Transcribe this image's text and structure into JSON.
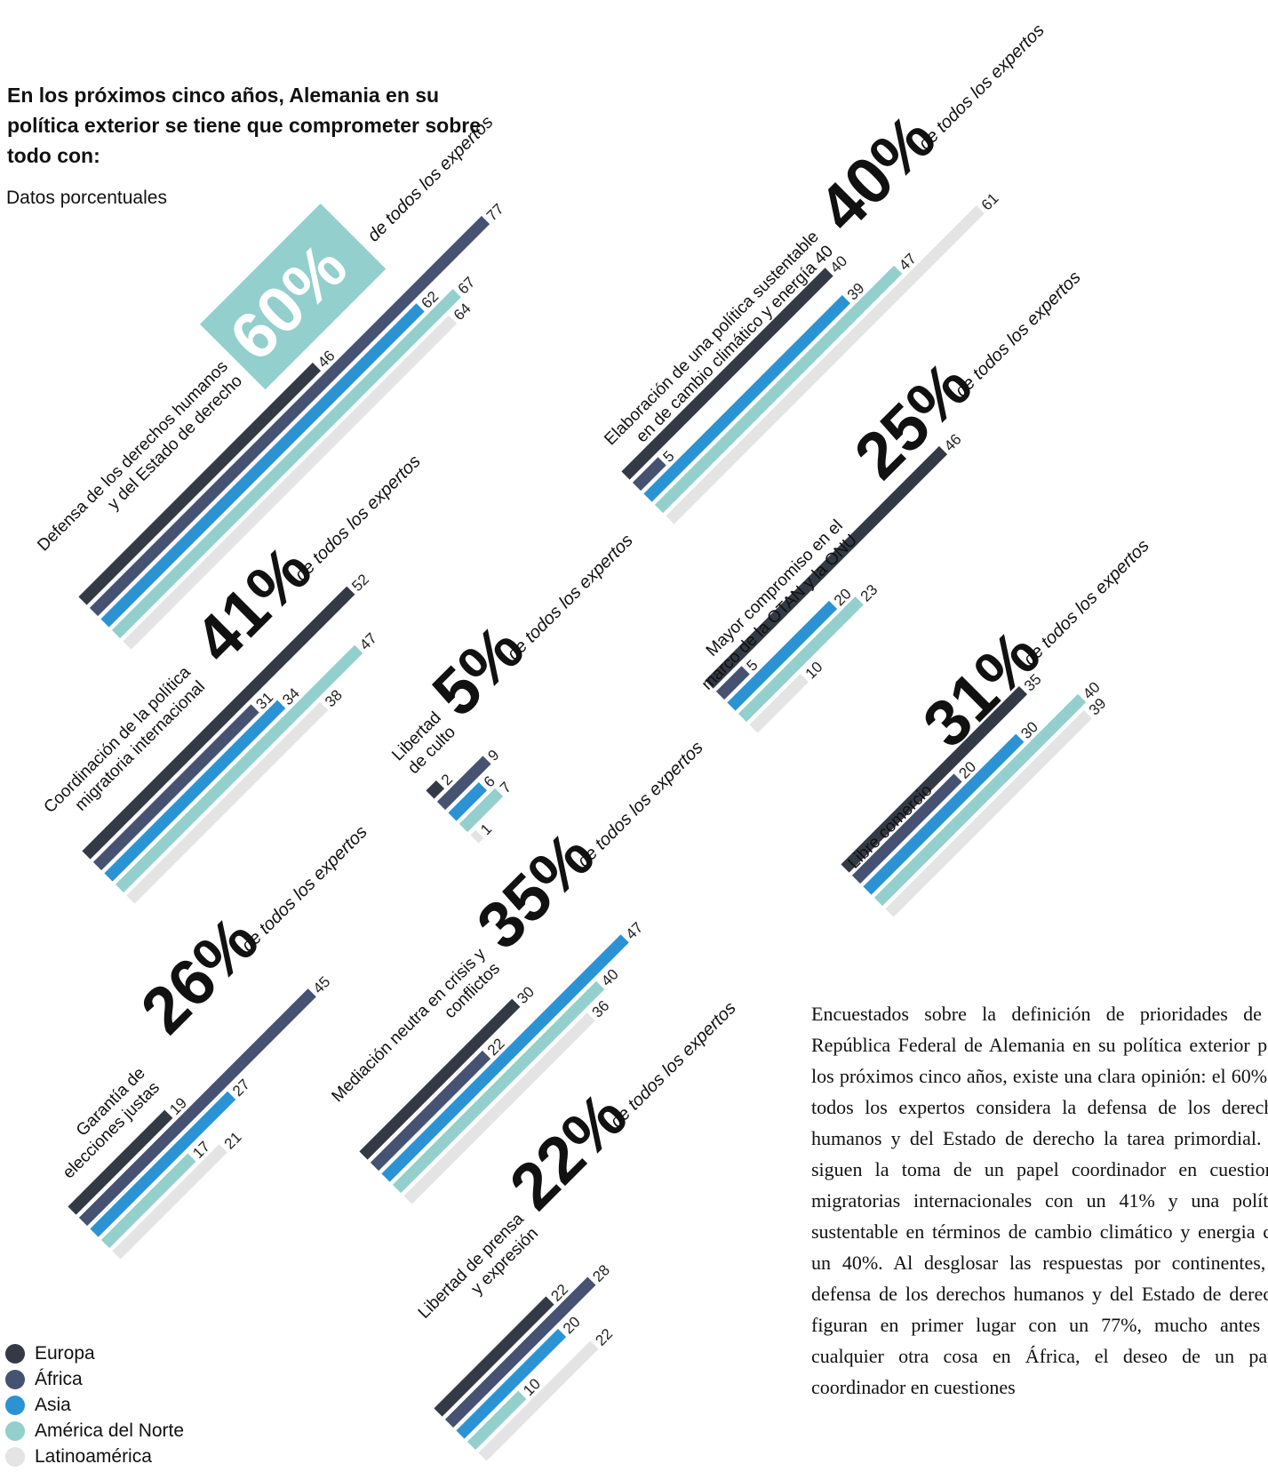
{
  "title": "En los próximos cinco años, Alemania en su política exterior se tiene que comprometer sobre todo con:",
  "subtitle": "Datos porcentuales",
  "summary": "Encuestados sobre la definición de prioridades de la República Federal de Alemania en su política exterior para los próximos cinco años, existe una clara opinión: el 60% de todos los expertos considera la defensa de los derechos humanos y del Estado de derecho la tarea primordial. Le siguen la toma de un papel coordinador en cuestiones migratorias internacionales con un 41% y una política sustentable en términos de cambio climático y energia con un 40%. Al desglosar las respuestas por continentes, la defensa de los derechos humanos y del Estado de derecho figuran en primer lugar con un 77%, mucho antes de cualquier otra cosa en África, el deseo de un papel coordinador en cuestiones",
  "colors": {
    "Europa": "#333a45",
    "África": "#465272",
    "Asia": "#2b93d3",
    "América del Norte": "#93cfcd",
    "Latinoamérica": "#e4e4e4",
    "highlight": "#93cfcd"
  },
  "chart_data": {
    "type": "bar",
    "series": [
      "Europa",
      "África",
      "Asia",
      "América del Norte",
      "Latinoamérica"
    ],
    "suffix": "de todos los expertos",
    "groups": [
      {
        "label": [
          "Defensa de los derechos humanos",
          "y del Estado de derecho"
        ],
        "percent": "60%",
        "values": [
          46,
          77,
          62,
          67,
          64
        ],
        "highlight": true
      },
      {
        "label": [
          "Coordinación de la política",
          "migratoria internacional"
        ],
        "percent": "41%",
        "values": [
          52,
          31,
          34,
          47,
          38
        ]
      },
      {
        "label": [
          "Libertad",
          "de culto"
        ],
        "percent": "5%",
        "values": [
          2,
          9,
          6,
          7,
          1
        ]
      },
      {
        "label": [
          "Garantía de",
          "elecciones justas"
        ],
        "percent": "26%",
        "values": [
          19,
          45,
          27,
          17,
          21
        ]
      },
      {
        "label": [
          "Mediación neutra en crisis y",
          "conflictos"
        ],
        "percent": "35%",
        "values": [
          30,
          22,
          47,
          40,
          36
        ]
      },
      {
        "label": [
          "Libertad de prensa",
          "y expresión"
        ],
        "percent": "22%",
        "values": [
          22,
          28,
          20,
          10,
          22
        ]
      },
      {
        "label": [
          "Elaboración de una política sustentable",
          "en de cambio climático y energía 40"
        ],
        "percent": "40%",
        "values": [
          40,
          5,
          39,
          47,
          61
        ]
      },
      {
        "label": [
          "Mayor compromiso en el",
          "marco de la OTAN y la ONU"
        ],
        "percent": "25%",
        "values": [
          46,
          5,
          20,
          23,
          10
        ]
      },
      {
        "label": [
          "Libre comercio"
        ],
        "percent": "31%",
        "values": [
          35,
          20,
          30,
          40,
          39
        ]
      }
    ]
  }
}
